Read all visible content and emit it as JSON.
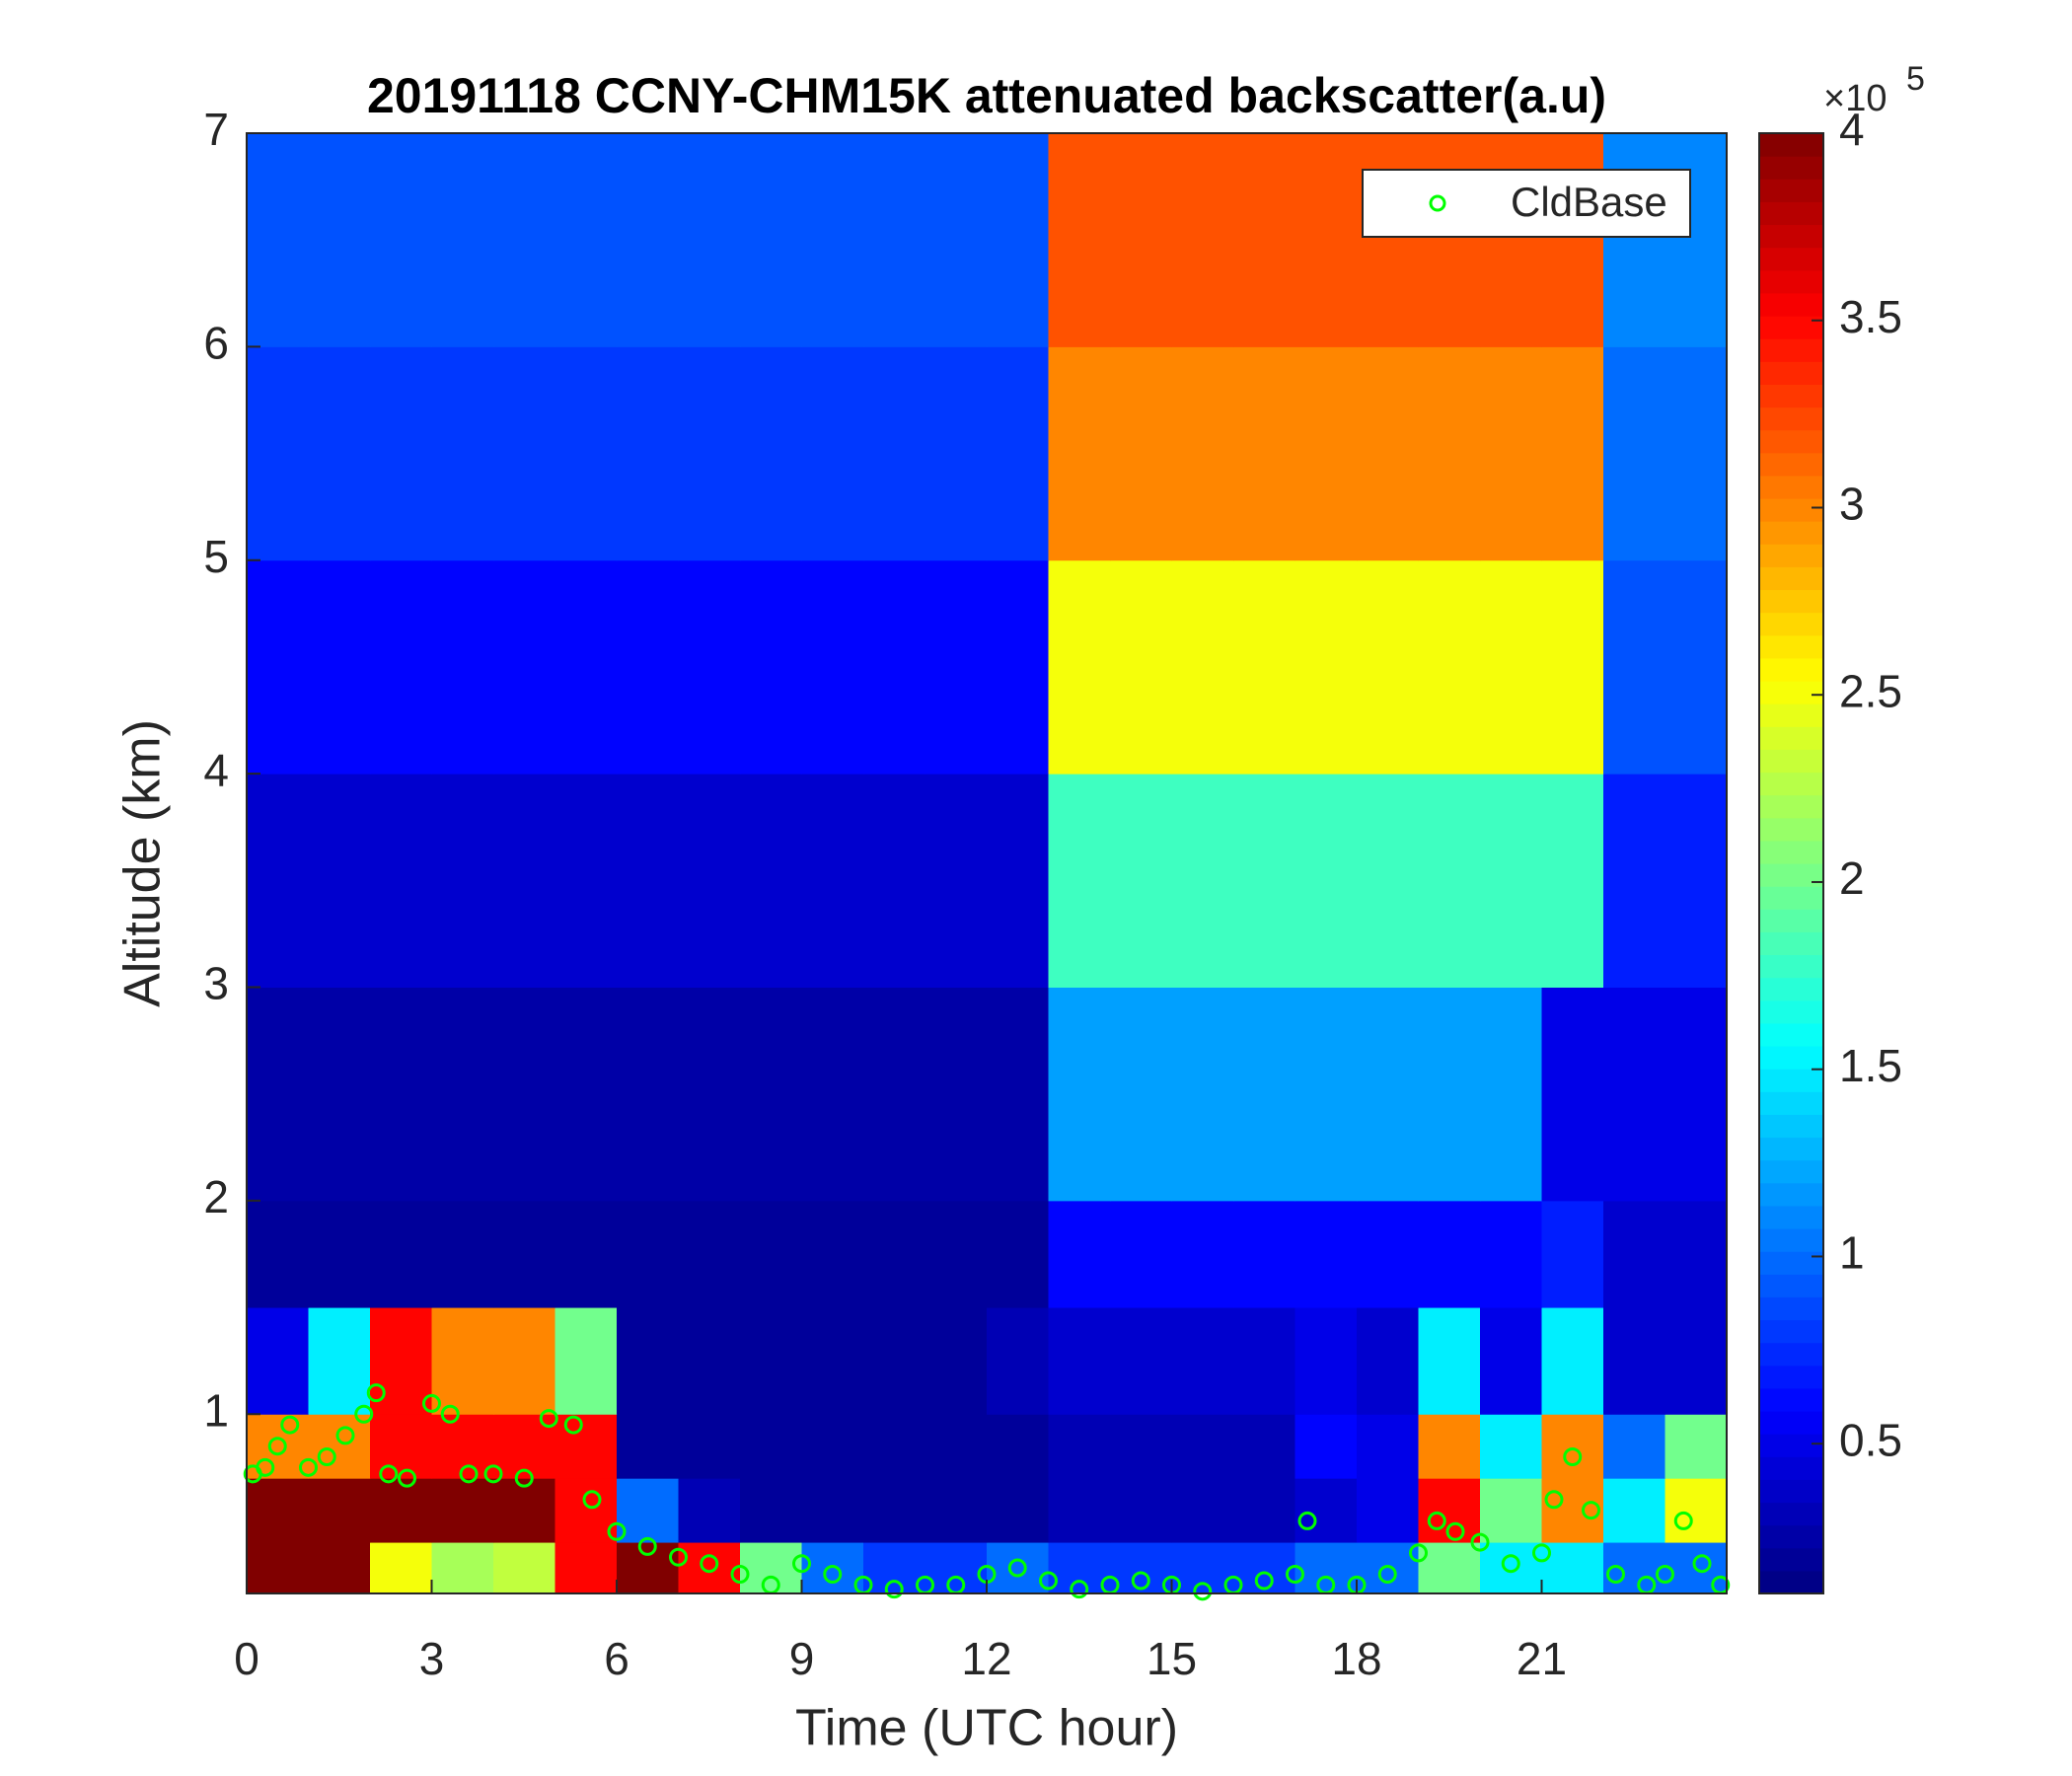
{
  "chart_data": {
    "type": "heatmap",
    "title": "20191118 CCNY-CHM15K attenuated backscatter(a.u)",
    "x_label": "Time (UTC hour)",
    "y_label": "Altitude (km)",
    "xlim": [
      0,
      24
    ],
    "ylim": [
      0.16,
      7
    ],
    "xticks": [
      0,
      3,
      6,
      9,
      12,
      15,
      18,
      21
    ],
    "yticks": [
      1,
      2,
      3,
      4,
      5,
      6,
      7
    ],
    "colormap": "jet",
    "clim": [
      0.1,
      4
    ],
    "colorbar_ticks": [
      0.5,
      1,
      1.5,
      2,
      2.5,
      3,
      3.5,
      4
    ],
    "colorbar_multiplier": "×10",
    "colorbar_exponent": "5",
    "legend_position": "upper right",
    "heatmap": {
      "x_edges": [
        0,
        1,
        2,
        3,
        4,
        5,
        6,
        7,
        8,
        9,
        10,
        11,
        12,
        13,
        14,
        15,
        16,
        17,
        18,
        19,
        20,
        21,
        22,
        23,
        24
      ],
      "y_edges": [
        0.16,
        0.4,
        0.7,
        1.0,
        1.5,
        2,
        3,
        4,
        5,
        6,
        7
      ],
      "values": [
        [
          4,
          4,
          2.5,
          2.2,
          2.3,
          3.5,
          4,
          3.5,
          2,
          1,
          0.8,
          0.8,
          1,
          0.8,
          0.8,
          0.8,
          0.8,
          1,
          1,
          2,
          1.5,
          1.5,
          1,
          1
        ],
        [
          4,
          4,
          4,
          4,
          4,
          3.5,
          1,
          0.3,
          0.2,
          0.2,
          0.2,
          0.2,
          0.2,
          0.3,
          0.3,
          0.3,
          0.3,
          0.4,
          0.5,
          3.5,
          2,
          3,
          1.5,
          2.5
        ],
        [
          3,
          3,
          3.5,
          3.5,
          3.5,
          3.5,
          0.2,
          0.2,
          0.2,
          0.2,
          0.2,
          0.2,
          0.2,
          0.3,
          0.3,
          0.3,
          0.3,
          0.6,
          0.5,
          3,
          1.5,
          3,
          1,
          2
        ],
        [
          0.5,
          1.5,
          3.5,
          3,
          3,
          2,
          0.2,
          0.2,
          0.2,
          0.2,
          0.2,
          0.2,
          0.3,
          0.4,
          0.4,
          0.4,
          0.4,
          0.5,
          0.4,
          1.5,
          0.5,
          1.5,
          0.4,
          0.4
        ],
        [
          0.2,
          0.2,
          0.2,
          0.2,
          0.2,
          0.2,
          0.2,
          0.2,
          0.2,
          0.2,
          0.2,
          0.2,
          0.2,
          0.6,
          0.6,
          0.6,
          0.6,
          0.6,
          0.6,
          0.6,
          0.6,
          0.7,
          0.4,
          0.4
        ],
        [
          0.25,
          0.25,
          0.25,
          0.25,
          0.25,
          0.25,
          0.25,
          0.25,
          0.25,
          0.25,
          0.25,
          0.25,
          0.25,
          1.2,
          1.2,
          1.2,
          1.2,
          1.2,
          1.2,
          1.2,
          1.2,
          0.5,
          0.5,
          0.5
        ],
        [
          0.4,
          0.4,
          0.4,
          0.4,
          0.4,
          0.4,
          0.4,
          0.4,
          0.4,
          0.4,
          0.4,
          0.4,
          0.4,
          1.8,
          1.8,
          1.8,
          1.8,
          1.8,
          1.8,
          1.8,
          1.8,
          1.8,
          0.7,
          0.7
        ],
        [
          0.6,
          0.6,
          0.6,
          0.6,
          0.6,
          0.6,
          0.6,
          0.6,
          0.6,
          0.6,
          0.6,
          0.6,
          0.6,
          2.5,
          2.5,
          2.5,
          2.5,
          2.5,
          2.5,
          2.5,
          2.5,
          2.5,
          0.9,
          0.9
        ],
        [
          0.8,
          0.8,
          0.8,
          0.8,
          0.8,
          0.8,
          0.8,
          0.8,
          0.8,
          0.8,
          0.8,
          0.8,
          0.8,
          3,
          3,
          3,
          3,
          3,
          3,
          3,
          3,
          3,
          1,
          1
        ],
        [
          0.9,
          0.9,
          0.9,
          0.9,
          0.9,
          0.9,
          0.9,
          0.9,
          0.9,
          0.9,
          0.9,
          0.9,
          0.9,
          3.2,
          3.2,
          3.2,
          3.2,
          3.2,
          3.2,
          3.2,
          3.2,
          3.2,
          1.1,
          1.1
        ]
      ]
    },
    "series": [
      {
        "name": "CldBase",
        "color": "#00ff00",
        "x": [
          0.1,
          0.3,
          0.5,
          0.7,
          1.0,
          1.3,
          1.6,
          1.9,
          2.1,
          2.3,
          2.6,
          3.0,
          3.3,
          3.6,
          4.0,
          4.5,
          4.9,
          5.3,
          5.6,
          6.0,
          6.5,
          7.0,
          7.5,
          8.0,
          8.5,
          9.0,
          9.5,
          10.0,
          10.5,
          11.0,
          11.5,
          12.0,
          12.5,
          13.0,
          13.5,
          14.0,
          14.5,
          15.0,
          15.5,
          16.0,
          16.5,
          17.0,
          17.2,
          17.5,
          18.0,
          18.5,
          19.0,
          19.3,
          19.6,
          20.0,
          20.5,
          21.0,
          21.2,
          21.5,
          21.8,
          22.2,
          22.7,
          23.0,
          23.3,
          23.6,
          23.9
        ],
        "values": [
          0.72,
          0.75,
          0.85,
          0.95,
          0.75,
          0.8,
          0.9,
          1.0,
          1.1,
          0.72,
          0.7,
          1.05,
          1.0,
          0.72,
          0.72,
          0.7,
          0.98,
          0.95,
          0.6,
          0.45,
          0.38,
          0.33,
          0.3,
          0.25,
          0.2,
          0.3,
          0.25,
          0.2,
          0.18,
          0.2,
          0.2,
          0.25,
          0.28,
          0.22,
          0.18,
          0.2,
          0.22,
          0.2,
          0.17,
          0.2,
          0.22,
          0.25,
          0.5,
          0.2,
          0.2,
          0.25,
          0.35,
          0.5,
          0.45,
          0.4,
          0.3,
          0.35,
          0.6,
          0.8,
          0.55,
          0.25,
          0.2,
          0.25,
          0.5,
          0.3,
          0.2
        ]
      }
    ]
  }
}
